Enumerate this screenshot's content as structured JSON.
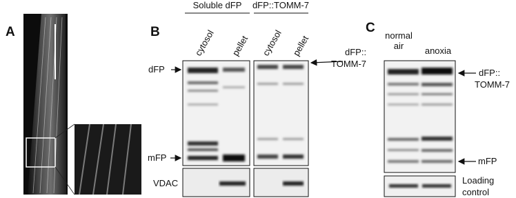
{
  "panels": {
    "a": {
      "label": "A"
    },
    "b": {
      "label": "B",
      "groups": [
        "Soluble dFP",
        "dFP::TOMM-7"
      ],
      "lanes": [
        "cytosol",
        "pellet",
        "cytosol",
        "pellet"
      ],
      "left_labels": [
        "dFP",
        "mFP",
        "VDAC"
      ],
      "right_label": [
        "dFP::",
        "TOMM-7"
      ]
    },
    "c": {
      "label": "C",
      "lanes": [
        [
          "normal",
          "air"
        ],
        [
          "anoxia"
        ]
      ],
      "right_labels": [
        [
          "dFP::",
          "TOMM-7"
        ],
        [
          "mFP"
        ]
      ],
      "loading_label": [
        "Loading",
        "control"
      ]
    }
  }
}
